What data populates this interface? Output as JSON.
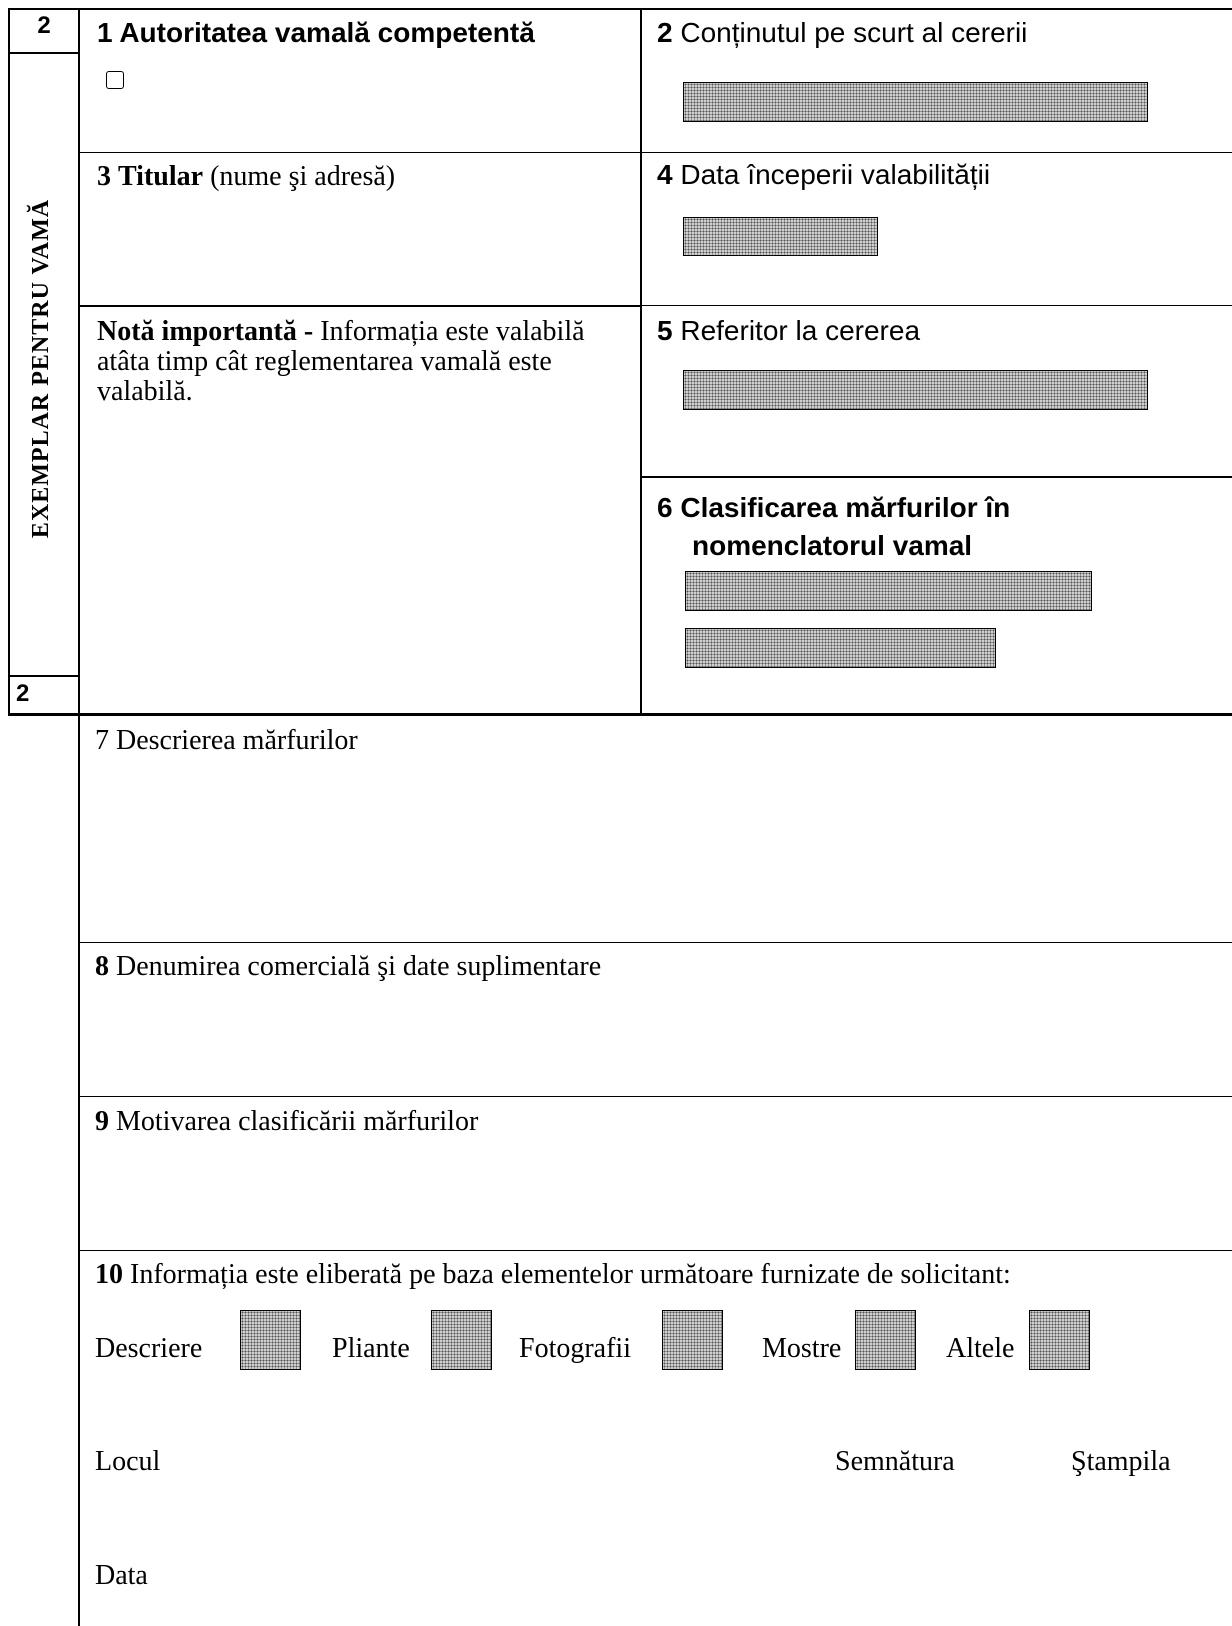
{
  "copy_number_top": "2",
  "copy_number_bottom": "2",
  "side_label": "EXEMPLAR PENTRU VAMĂ",
  "box1": {
    "number": "1",
    "title": "Autoritatea vamală competentă",
    "checkbox_icon": "checkbox-icon"
  },
  "box2": {
    "number": "2",
    "title": "Conținutul pe scurt al cererii"
  },
  "box3": {
    "number": "3",
    "title": "Titular",
    "note": "(nume şi adresă)"
  },
  "box4": {
    "number": "4",
    "title": "Data începerii valabilității"
  },
  "note": {
    "title": "Notă importantă -",
    "text": "Informația  este valabilă atâta timp cât reglementarea vamală este valabilă."
  },
  "box5": {
    "number": "5",
    "title": "Referitor la cererea"
  },
  "box6": {
    "number": "6",
    "title_line1": "Clasificarea mărfurilor în",
    "title_line2": "nomenclatorul vamal"
  },
  "box7": {
    "number": "7",
    "title": "Descrierea mărfurilor"
  },
  "box8": {
    "number": "8",
    "title": "Denumirea comercială şi date suplimentare"
  },
  "box9": {
    "number": "9",
    "title": "Motivarea clasificării mărfurilor"
  },
  "box10": {
    "number": "10",
    "title": "Informația este eliberată pe baza elementelor următoare furnizate de solicitant:",
    "options": [
      "Descriere",
      "Pliante",
      "Fotografii",
      "Mostre",
      "Altele"
    ],
    "place_label": "Locul",
    "signature_label": "Semnătura",
    "stamp_label": "Ştampila",
    "date_label": "Data"
  }
}
